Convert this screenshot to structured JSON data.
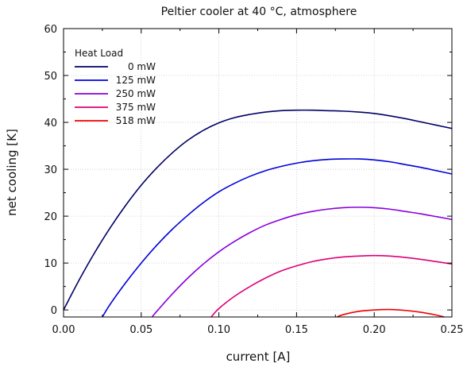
{
  "chart_data": {
    "type": "line",
    "title": "Peltier cooler at 40 °C, atmosphere",
    "xlabel": "current [A]",
    "ylabel": "net cooling [K]",
    "xlim": [
      0.0,
      0.25
    ],
    "ylim": [
      -1.5,
      60
    ],
    "xticks": [
      "0.00",
      "0.05",
      "0.10",
      "0.15",
      "0.20",
      "0.25"
    ],
    "yticks": [
      "0",
      "10",
      "20",
      "30",
      "40",
      "50",
      "60"
    ],
    "grid": true,
    "legend": {
      "title": "Heat Load",
      "placement": "top-left"
    },
    "series": [
      {
        "name": "0 mW",
        "color": "#000066",
        "x": [
          0.0,
          0.01,
          0.02,
          0.03,
          0.04,
          0.05,
          0.06,
          0.07,
          0.08,
          0.09,
          0.1,
          0.11,
          0.12,
          0.13,
          0.14,
          0.15,
          0.16,
          0.17,
          0.18,
          0.19,
          0.2,
          0.21,
          0.22,
          0.23,
          0.24,
          0.25
        ],
        "values": [
          0.0,
          6.35,
          12.2,
          17.5,
          22.3,
          26.6,
          30.3,
          33.5,
          36.2,
          38.3,
          39.9,
          41.0,
          41.7,
          42.2,
          42.5,
          42.6,
          42.6,
          42.5,
          42.4,
          42.2,
          41.9,
          41.4,
          40.8,
          40.1,
          39.4,
          38.7
        ]
      },
      {
        "name": "125 mW",
        "color": "#0000dd",
        "x": [
          0.025,
          0.03,
          0.04,
          0.05,
          0.06,
          0.07,
          0.08,
          0.09,
          0.1,
          0.11,
          0.12,
          0.13,
          0.14,
          0.15,
          0.16,
          0.17,
          0.18,
          0.19,
          0.2,
          0.21,
          0.22,
          0.23,
          0.24,
          0.25
        ],
        "values": [
          -1.5,
          1.2,
          5.8,
          10.0,
          13.8,
          17.2,
          20.2,
          22.9,
          25.2,
          27.0,
          28.5,
          29.7,
          30.6,
          31.3,
          31.8,
          32.1,
          32.2,
          32.2,
          32.0,
          31.6,
          31.0,
          30.4,
          29.7,
          29.0
        ]
      },
      {
        "name": "250 mW",
        "color": "#8800dd",
        "x": [
          0.057,
          0.06,
          0.07,
          0.08,
          0.09,
          0.1,
          0.11,
          0.12,
          0.13,
          0.14,
          0.15,
          0.16,
          0.17,
          0.18,
          0.19,
          0.2,
          0.21,
          0.22,
          0.23,
          0.24,
          0.25
        ],
        "values": [
          -1.5,
          -0.3,
          3.4,
          6.8,
          9.8,
          12.4,
          14.6,
          16.5,
          18.1,
          19.3,
          20.3,
          21.0,
          21.5,
          21.8,
          21.9,
          21.8,
          21.5,
          21.0,
          20.5,
          19.9,
          19.3
        ]
      },
      {
        "name": "375 mW",
        "color": "#dd0077",
        "x": [
          0.095,
          0.1,
          0.11,
          0.12,
          0.13,
          0.14,
          0.15,
          0.16,
          0.17,
          0.18,
          0.19,
          0.2,
          0.21,
          0.22,
          0.23,
          0.24,
          0.25
        ],
        "values": [
          -1.5,
          0.3,
          2.9,
          5.0,
          6.8,
          8.3,
          9.4,
          10.3,
          10.9,
          11.3,
          11.5,
          11.6,
          11.5,
          11.2,
          10.8,
          10.3,
          9.8
        ]
      },
      {
        "name": "518 mW",
        "color": "#ee0000",
        "x": [
          0.176,
          0.18,
          0.19,
          0.2,
          0.21,
          0.22,
          0.23,
          0.24,
          0.245
        ],
        "values": [
          -1.5,
          -1.0,
          -0.3,
          0.0,
          0.1,
          -0.1,
          -0.5,
          -1.1,
          -1.5
        ]
      }
    ]
  }
}
